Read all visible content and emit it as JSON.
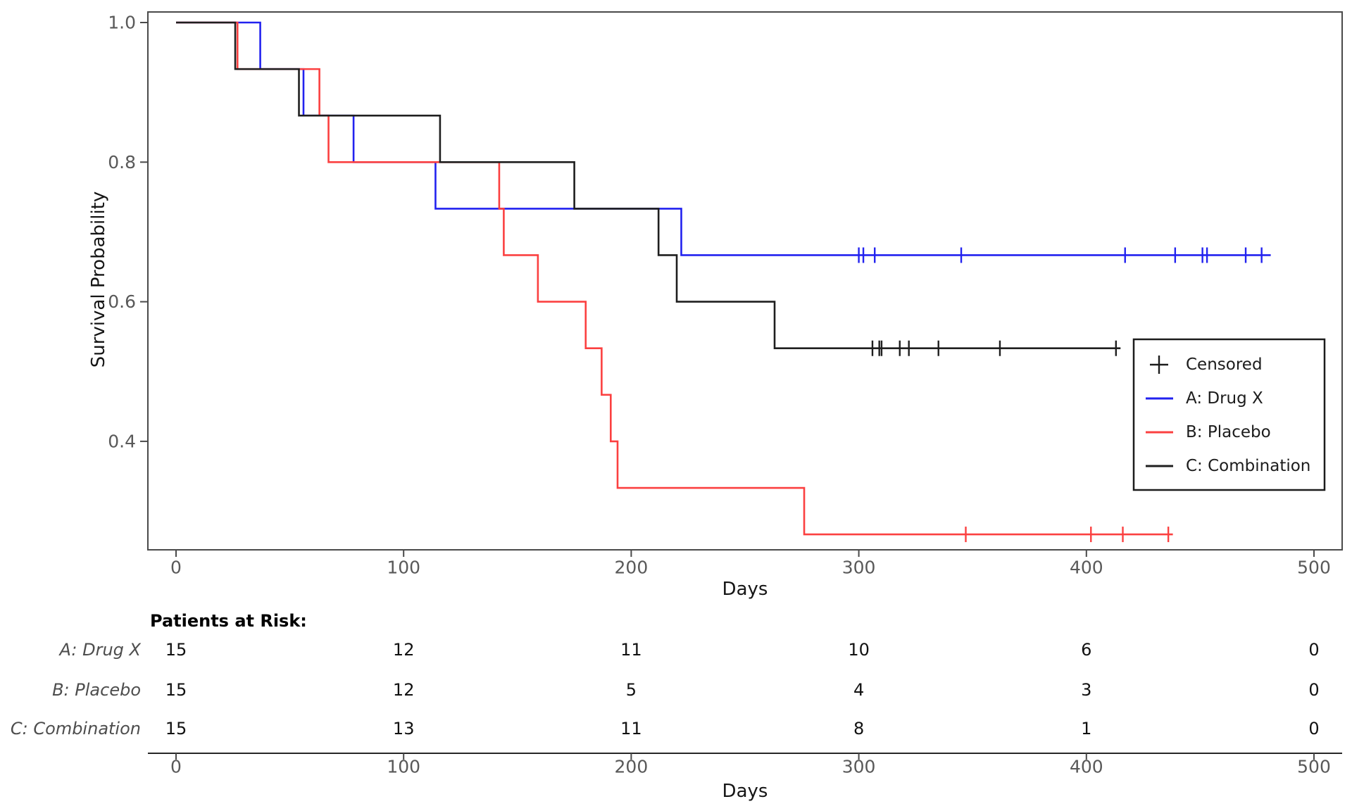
{
  "figure": {
    "ylabel": "Survival Probability",
    "xlabel": "Days"
  },
  "chart_data": {
    "type": "line",
    "subtype": "kaplan_meier_step",
    "xlabel": "Days",
    "ylabel": "Survival Probability",
    "xlim": [
      -12,
      512
    ],
    "ylim": [
      0.24,
      1.02
    ],
    "x_ticks": [
      0,
      100,
      200,
      300,
      400,
      500
    ],
    "y_ticks": [
      "1.0",
      "0.8",
      "0.6",
      "0.4"
    ],
    "y_tick_values": [
      1.0,
      0.8,
      0.6,
      0.4
    ],
    "grid": false,
    "n_initial_per_group": 15,
    "series": [
      {
        "name": "A: Drug X",
        "color": "#2222ef",
        "steps": [
          [
            0,
            1.0
          ],
          [
            37,
            0.9333
          ],
          [
            56,
            0.8667
          ],
          [
            78,
            0.8
          ],
          [
            114,
            0.7333
          ],
          [
            222,
            0.6667
          ]
        ],
        "censor_times": [
          300,
          302,
          307,
          345,
          417,
          439,
          451,
          453,
          470,
          477
        ],
        "end_time": 481
      },
      {
        "name": "B: Placebo",
        "color": "#fb4040",
        "steps": [
          [
            0,
            1.0
          ],
          [
            27,
            0.9333
          ],
          [
            63,
            0.8667
          ],
          [
            67,
            0.8
          ],
          [
            142,
            0.7333
          ],
          [
            144,
            0.6667
          ],
          [
            159,
            0.6
          ],
          [
            180,
            0.5333
          ],
          [
            187,
            0.4667
          ],
          [
            191,
            0.4
          ],
          [
            194,
            0.3333
          ],
          [
            276,
            0.2667
          ]
        ],
        "censor_times": [
          347,
          402,
          416,
          436
        ],
        "end_time": 438
      },
      {
        "name": "C: Combination",
        "color": "#1f1f1f",
        "steps": [
          [
            0,
            1.0
          ],
          [
            26,
            0.9333
          ],
          [
            54,
            0.8667
          ],
          [
            116,
            0.8
          ],
          [
            175,
            0.7333
          ],
          [
            212,
            0.6667
          ],
          [
            220,
            0.6
          ],
          [
            263,
            0.5333
          ]
        ],
        "censor_times": [
          306,
          309,
          310,
          318,
          322,
          335,
          362,
          413
        ],
        "end_time": 415
      }
    ]
  },
  "legend": {
    "items": [
      {
        "symbol": "plus",
        "color": "#1c1c1c",
        "label": "Censored"
      },
      {
        "symbol": "line",
        "color": "#2222ef",
        "label": "A: Drug X"
      },
      {
        "symbol": "line",
        "color": "#fb4040",
        "label": "B: Placebo"
      },
      {
        "symbol": "line",
        "color": "#1f1f1f",
        "label": "C: Combination"
      }
    ]
  },
  "risk_table": {
    "title": "Patients at Risk:",
    "time_points": [
      0,
      100,
      200,
      300,
      400,
      500
    ],
    "rows": [
      {
        "label": "A: Drug X",
        "counts": [
          15,
          12,
          11,
          10,
          6,
          0
        ]
      },
      {
        "label": "B: Placebo",
        "counts": [
          15,
          12,
          5,
          4,
          3,
          0
        ]
      },
      {
        "label": "C: Combination",
        "counts": [
          15,
          13,
          11,
          8,
          1,
          0
        ]
      }
    ],
    "xlabel": "Days"
  }
}
